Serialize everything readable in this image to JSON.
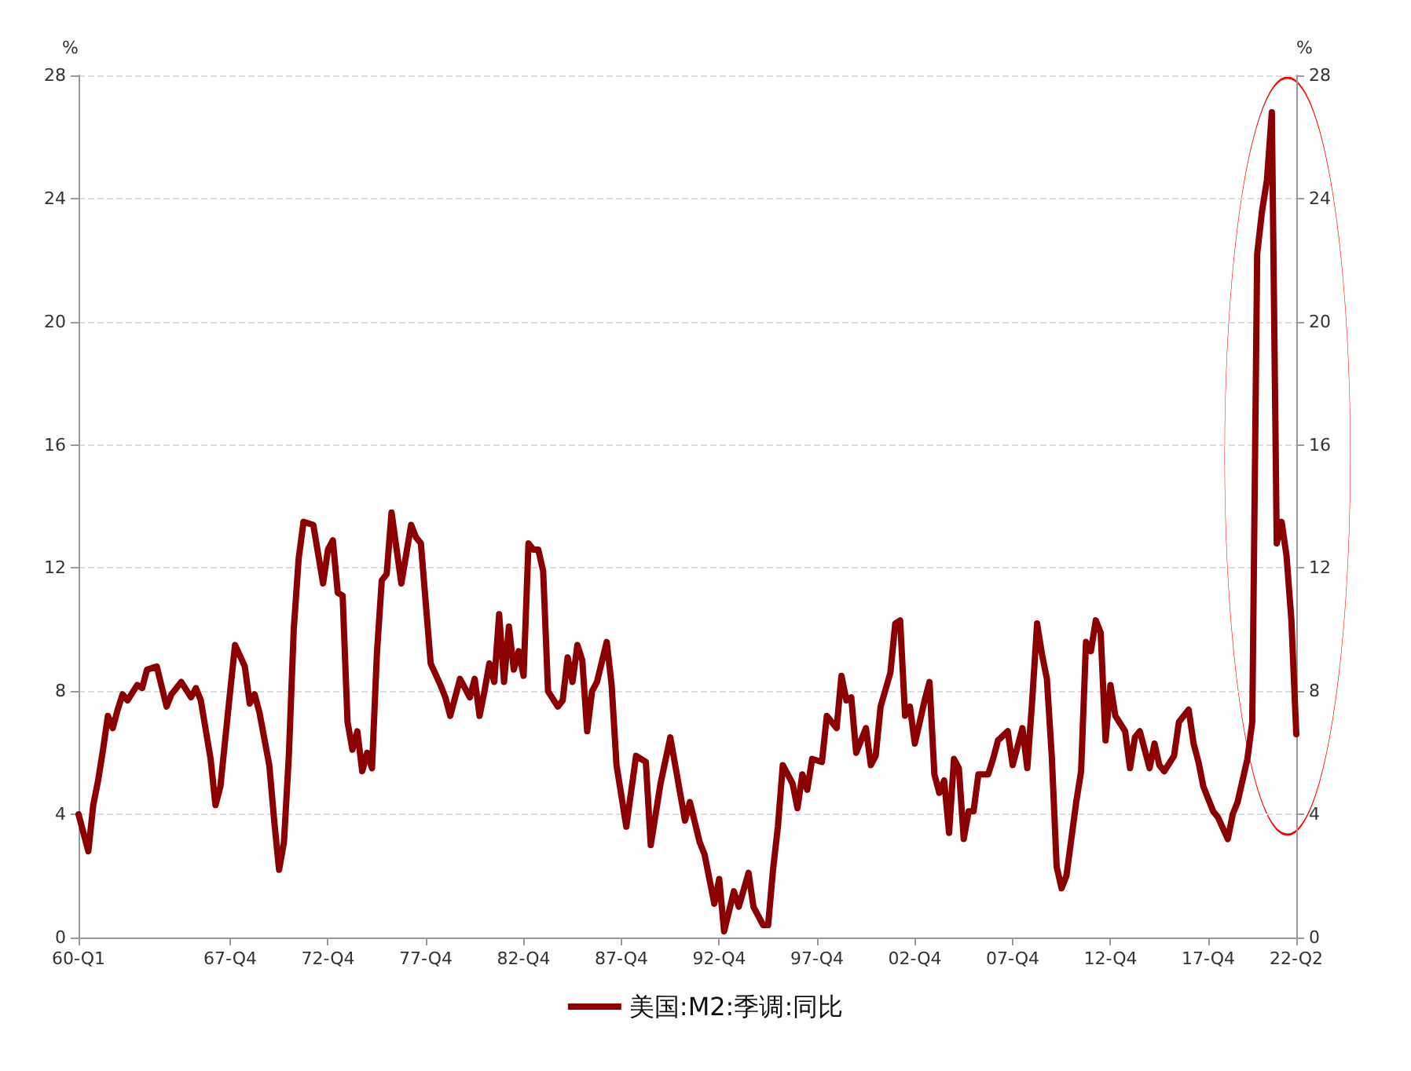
{
  "chart_data": {
    "type": "line",
    "ylabel": "%",
    "y2label": "%",
    "categories": [
      "60-Q1",
      null,
      null,
      null,
      null,
      null,
      null,
      null,
      null,
      null,
      null,
      null,
      null,
      null,
      null,
      null,
      null,
      null,
      null,
      null,
      null,
      null,
      null,
      null,
      null,
      null,
      null,
      null,
      null,
      null,
      null,
      "67-Q4",
      null,
      null,
      null,
      null,
      null,
      null,
      null,
      null,
      null,
      null,
      null,
      null,
      null,
      null,
      null,
      null,
      null,
      null,
      null,
      "72-Q4",
      null,
      null,
      null,
      null,
      null,
      null,
      null,
      null,
      null,
      null,
      null,
      null,
      null,
      null,
      null,
      null,
      null,
      null,
      null,
      "77-Q4",
      null,
      null,
      null,
      null,
      null,
      null,
      null,
      null,
      null,
      null,
      null,
      null,
      null,
      null,
      null,
      null,
      null,
      null,
      null,
      "82-Q4",
      null,
      null,
      null,
      null,
      null,
      null,
      null,
      null,
      null,
      null,
      null,
      null,
      null,
      null,
      null,
      null,
      null,
      null,
      null,
      "87-Q4",
      null,
      null,
      null,
      null,
      null,
      null,
      null,
      null,
      null,
      null,
      null,
      null,
      null,
      null,
      null,
      null,
      null,
      null,
      null,
      "92-Q4",
      null,
      null,
      null,
      null,
      null,
      null,
      null,
      null,
      null,
      null,
      null,
      null,
      null,
      null,
      null,
      null,
      null,
      null,
      null,
      "97-Q4",
      null,
      null,
      null,
      null,
      null,
      null,
      null,
      null,
      null,
      null,
      null,
      null,
      null,
      null,
      null,
      null,
      null,
      null,
      null,
      "02-Q4",
      null,
      null,
      null,
      null,
      null,
      null,
      null,
      null,
      null,
      null,
      null,
      null,
      null,
      null,
      null,
      null,
      null,
      null,
      null,
      "07-Q4",
      null,
      null,
      null,
      null,
      null,
      null,
      null,
      null,
      null,
      null,
      null,
      null,
      null,
      null,
      null,
      null,
      null,
      null,
      null,
      "12-Q4",
      null,
      null,
      null,
      null,
      null,
      null,
      null,
      null,
      null,
      null,
      null,
      null,
      null,
      null,
      null,
      null,
      null,
      null,
      null,
      "17-Q4",
      null,
      null,
      null,
      null,
      null,
      null,
      null,
      null,
      null,
      null,
      null,
      null,
      null,
      null,
      null,
      null,
      null,
      "22-Q2"
    ],
    "series": [
      {
        "name": "美国:M2:季调:同比",
        "color": "#8b0000",
        "values": [
          4.0,
          null,
          2.8,
          4.3,
          5.1,
          6.1,
          7.2,
          6.8,
          7.4,
          7.9,
          7.7,
          null,
          8.2,
          8.1,
          8.7,
          null,
          8.8,
          null,
          7.5,
          7.9,
          null,
          8.3,
          null,
          7.8,
          8.1,
          7.7,
          null,
          5.8,
          4.3,
          4.9,
          null,
          8.0,
          9.5,
          null,
          8.8,
          7.6,
          7.9,
          7.3,
          null,
          5.6,
          3.8,
          2.2,
          3.1,
          5.9,
          10.0,
          12.3,
          13.5,
          null,
          13.4,
          null,
          11.5,
          12.6,
          12.9,
          11.2,
          11.1,
          7.0,
          6.1,
          6.7,
          5.4,
          6.0,
          5.5,
          9.2,
          11.6,
          11.8,
          13.8,
          null,
          11.5,
          null,
          13.4,
          13.0,
          12.8,
          null,
          8.9,
          null,
          8.2,
          7.8,
          7.2,
          7.8,
          8.4,
          null,
          7.8,
          8.4,
          7.2,
          8.0,
          8.9,
          8.3,
          10.5,
          8.3,
          10.1,
          8.7,
          9.3,
          8.5,
          12.8,
          12.6,
          12.6,
          11.9,
          8.0,
          null,
          7.5,
          7.7,
          9.1,
          8.3,
          9.5,
          9.0,
          6.7,
          8.0,
          8.3,
          null,
          9.6,
          8.2,
          5.6,
          null,
          3.6,
          null,
          5.9,
          null,
          5.7,
          3.0,
          null,
          5.0,
          null,
          6.5,
          5.6,
          null,
          3.8,
          4.4,
          null,
          3.1,
          2.7,
          null,
          1.1,
          1.9,
          0.2,
          null,
          1.5,
          1.0,
          null,
          2.1,
          1.0,
          null,
          0.4,
          0.4,
          2.2,
          3.6,
          5.6,
          null,
          5.0,
          4.2,
          5.3,
          4.8,
          5.8,
          null,
          5.7,
          7.2,
          null,
          6.8,
          8.5,
          7.7,
          7.8,
          6.0,
          null,
          6.8,
          5.6,
          5.9,
          7.5,
          null,
          8.6,
          10.2,
          10.3,
          7.2,
          7.5,
          6.3,
          null,
          7.7,
          8.3,
          5.3,
          4.7,
          5.1,
          3.4,
          5.8,
          5.5,
          3.2,
          4.1,
          4.1,
          5.3,
          null,
          5.3,
          5.8,
          6.4,
          null,
          6.7,
          5.6,
          null,
          6.8,
          5.5,
          7.7,
          10.2,
          9.2,
          8.4,
          5.9,
          2.3,
          1.6,
          2.0,
          3.2,
          4.4,
          5.4,
          9.6,
          9.3,
          10.3,
          9.9,
          6.4,
          8.2,
          7.2,
          null,
          6.7,
          5.5,
          6.5,
          6.7,
          null,
          5.5,
          6.3,
          5.6,
          5.4,
          null,
          5.9,
          7.0,
          null,
          7.4,
          6.3,
          5.7,
          4.9,
          null,
          4.1,
          3.9,
          null,
          3.2,
          4.0,
          4.4,
          null,
          5.8,
          7.0,
          22.2,
          23.6,
          24.6,
          26.8,
          12.8,
          13.5,
          12.4,
          10.3,
          6.6
        ]
      }
    ],
    "ylim": [
      0,
      28
    ],
    "yticks": [
      0,
      4,
      8,
      12,
      16,
      20,
      24,
      28
    ],
    "y2lim": [
      0,
      28
    ],
    "y2ticks": [
      0,
      4,
      8,
      12,
      16,
      20,
      24,
      28
    ],
    "grid": "y",
    "legend": "bottom",
    "marker": "none",
    "line_style": "solid"
  }
}
